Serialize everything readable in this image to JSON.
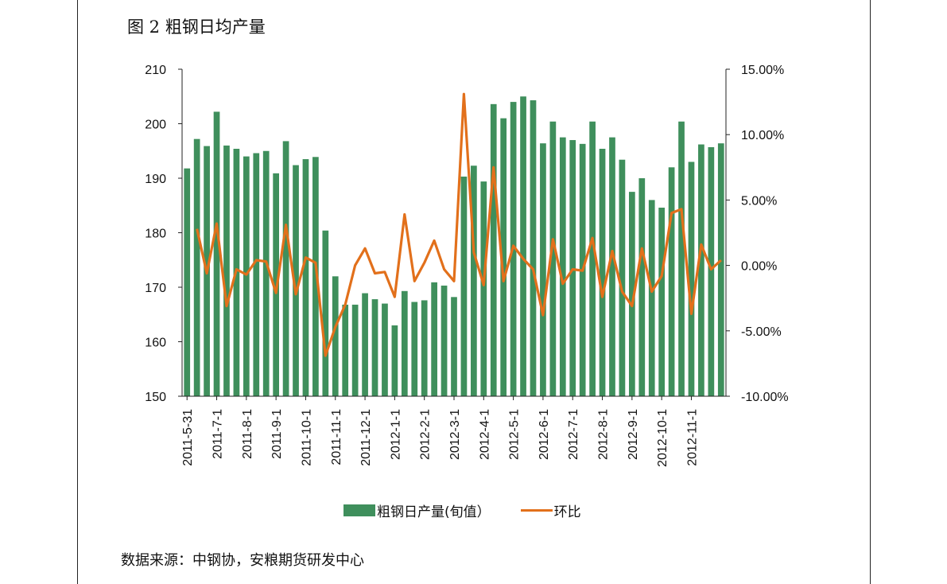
{
  "figure_title": "图 2 粗钢日均产量",
  "source": "数据来源：中钢协，安粮期货研发中心",
  "colors": {
    "bar": "#3f8f5c",
    "line": "#e2701b",
    "axis": "#222222"
  },
  "chart_data": {
    "type": "bar+line",
    "title": "图 2 粗钢日均产量",
    "left_axis": {
      "min": 150,
      "max": 210,
      "step": 10,
      "ticks": [
        "150",
        "160",
        "170",
        "180",
        "190",
        "200",
        "210"
      ]
    },
    "right_axis": {
      "min": -10,
      "max": 15,
      "step": 5,
      "ticks": [
        "-10.00%",
        "-5.00%",
        "0.00%",
        "5.00%",
        "10.00%",
        "15.00%"
      ]
    },
    "x_tick_labels": [
      "2011-5-31",
      "2011-7-1",
      "2011-8-1",
      "2011-9-1",
      "2011-10-1",
      "2011-11-1",
      "2011-12-1",
      "2012-1-1",
      "2012-2-1",
      "2012-3-1",
      "2012-4-1",
      "2012-5-1",
      "2012-6-1",
      "2012-7-1",
      "2012-8-1",
      "2012-9-1",
      "2012-10-1",
      "2012-11-1"
    ],
    "x_tick_indices": [
      0,
      3,
      6,
      9,
      12,
      15,
      18,
      21,
      24,
      27,
      30,
      33,
      36,
      39,
      42,
      45,
      48,
      51
    ],
    "series": [
      {
        "name": "粗钢日产量(旬值）",
        "type": "bar",
        "axis": "left",
        "values": [
          191.8,
          197.2,
          195.9,
          202.2,
          196.0,
          195.4,
          194.0,
          194.6,
          195.0,
          190.9,
          196.8,
          192.4,
          193.5,
          193.9,
          180.4,
          172.0,
          166.8,
          166.8,
          168.9,
          167.8,
          167.0,
          163.0,
          169.3,
          167.3,
          167.6,
          170.9,
          170.3,
          168.2,
          190.3,
          192.3,
          189.4,
          203.6,
          201.0,
          204.0,
          205.0,
          204.3,
          196.4,
          200.4,
          197.5,
          197.0,
          196.3,
          200.4,
          195.4,
          197.5,
          193.4,
          187.5,
          190.0,
          186.0,
          184.6,
          192.0,
          200.4,
          193.0,
          196.2,
          195.7,
          196.4
        ]
      },
      {
        "name": "环比",
        "type": "line",
        "axis": "right",
        "values": [
          null,
          2.8,
          -0.6,
          3.2,
          -3.1,
          -0.3,
          -0.7,
          0.4,
          0.3,
          -2.1,
          3.1,
          -2.2,
          0.6,
          0.2,
          -6.9,
          -4.7,
          -3.0,
          0.0,
          1.3,
          -0.6,
          -0.5,
          -2.4,
          3.9,
          -1.2,
          0.2,
          1.9,
          -0.3,
          -1.2,
          13.1,
          1.0,
          -1.5,
          7.5,
          -1.2,
          1.5,
          0.5,
          -0.3,
          -3.8,
          2.0,
          -1.4,
          -0.3,
          -0.4,
          2.1,
          -2.4,
          1.1,
          -2.0,
          -3.1,
          1.3,
          -2.0,
          -0.8,
          4.0,
          4.3,
          -3.7,
          1.6,
          -0.3,
          0.4
        ]
      }
    ],
    "legend": [
      "粗钢日产量(旬值）",
      "环比"
    ],
    "legend_position": "bottom"
  }
}
